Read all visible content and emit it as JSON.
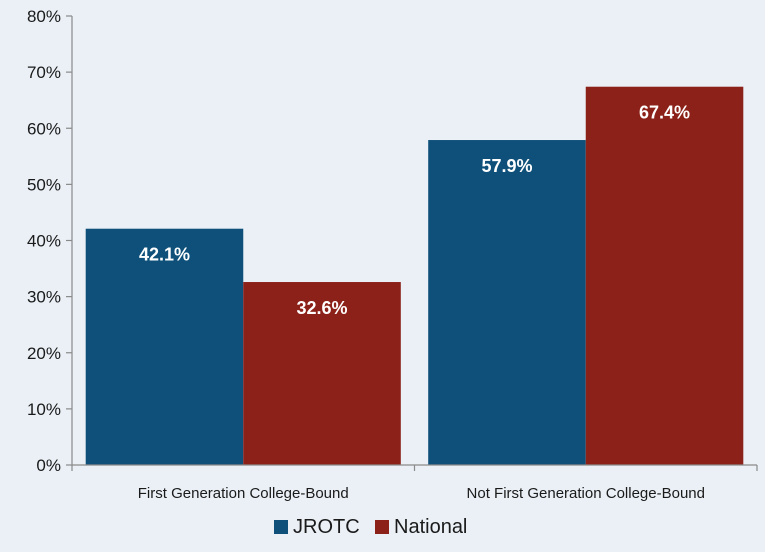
{
  "chart_data": {
    "type": "bar",
    "categories": [
      "First Generation College-Bound",
      "Not First Generation College-Bound"
    ],
    "series": [
      {
        "name": "JROTC",
        "values": [
          42.1,
          57.9
        ],
        "labels": [
          "42.1%",
          "57.9%"
        ],
        "color": "#0e5079"
      },
      {
        "name": "National",
        "values": [
          32.6,
          67.4
        ],
        "labels": [
          "32.6%",
          "67.4%"
        ],
        "color": "#8b2118"
      }
    ],
    "ylim": [
      0,
      80
    ],
    "yticks": [
      "0%",
      "10%",
      "20%",
      "30%",
      "40%",
      "50%",
      "60%",
      "70%",
      "80%"
    ],
    "grid": false,
    "legend_position": "bottom"
  }
}
